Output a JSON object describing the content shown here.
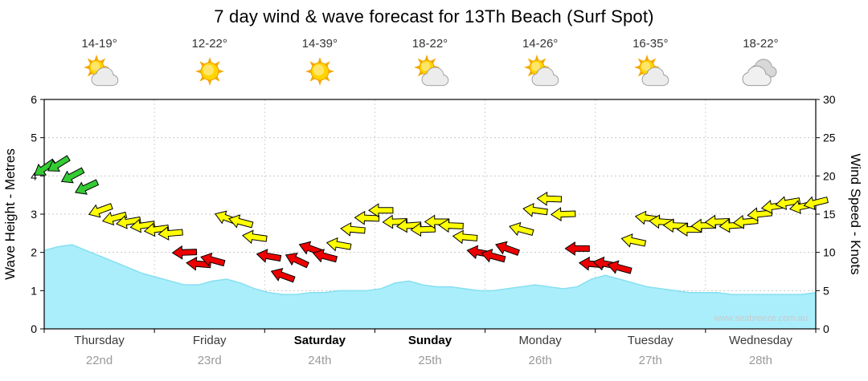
{
  "title": "7 day wind & wave forecast for 13Th Beach (Surf Spot)",
  "watermark": "www.seabreeze.com.au",
  "days": [
    {
      "name": "Thursday",
      "date": "22nd",
      "temp": "14-19°",
      "icon": "partly-cloudy",
      "bold": false
    },
    {
      "name": "Friday",
      "date": "23rd",
      "temp": "12-22°",
      "icon": "sunny",
      "bold": false
    },
    {
      "name": "Saturday",
      "date": "24th",
      "temp": "14-39°",
      "icon": "sunny",
      "bold": true
    },
    {
      "name": "Sunday",
      "date": "25th",
      "temp": "18-22°",
      "icon": "partly-cloudy",
      "bold": true
    },
    {
      "name": "Monday",
      "date": "26th",
      "temp": "14-26°",
      "icon": "partly-cloudy",
      "bold": false
    },
    {
      "name": "Tuesday",
      "date": "27th",
      "temp": "16-35°",
      "icon": "partly-cloudy",
      "bold": false
    },
    {
      "name": "Wednesday",
      "date": "28th",
      "temp": "18-22°",
      "icon": "cloudy",
      "bold": false
    }
  ],
  "chart_data": {
    "type": "area",
    "overlays": [
      "wind-arrows"
    ],
    "title": "7 day wind & wave forecast for 13Th Beach (Surf Spot)",
    "x_days": [
      "Thursday",
      "Friday",
      "Saturday",
      "Sunday",
      "Monday",
      "Tuesday",
      "Wednesday"
    ],
    "points_per_day": 8,
    "y_left": {
      "label": "Wave Height - Metres",
      "min": 0,
      "max": 6,
      "step": 1
    },
    "y_right": {
      "label": "Wind Speed - Knots",
      "min": 0,
      "max": 30,
      "step": 5
    },
    "grid": true,
    "wave_height_m": [
      2.05,
      2.15,
      2.2,
      2.05,
      1.9,
      1.75,
      1.6,
      1.45,
      1.35,
      1.25,
      1.15,
      1.15,
      1.25,
      1.3,
      1.2,
      1.05,
      0.95,
      0.9,
      0.9,
      0.95,
      0.95,
      1.0,
      1.0,
      1.0,
      1.05,
      1.2,
      1.25,
      1.15,
      1.1,
      1.1,
      1.05,
      1.0,
      1.0,
      1.05,
      1.1,
      1.15,
      1.1,
      1.05,
      1.1,
      1.3,
      1.4,
      1.3,
      1.2,
      1.1,
      1.05,
      1.0,
      0.95,
      0.95,
      0.95,
      0.9,
      0.9,
      0.9,
      0.9,
      0.9,
      0.9,
      0.95
    ],
    "wind_speed_knots": [
      21,
      21.5,
      20,
      18.5,
      15.5,
      14.5,
      14,
      13.5,
      13,
      12.5,
      10,
      8.5,
      9,
      14.5,
      14,
      12,
      9.5,
      7,
      9,
      10.5,
      9.5,
      11,
      13,
      14.5,
      15.5,
      14,
      13.5,
      13,
      14,
      13.5,
      12,
      10,
      9.5,
      10.5,
      13,
      15.5,
      17,
      15,
      10.5,
      8.5,
      8.5,
      8,
      11.5,
      14.5,
      14,
      13.5,
      13,
      13.5,
      14,
      13.5,
      14,
      15,
      16,
      16.5,
      16,
      16.5
    ],
    "wind_dir_deg": [
      145,
      148,
      152,
      155,
      160,
      165,
      170,
      172,
      172,
      175,
      178,
      185,
      195,
      200,
      195,
      188,
      190,
      200,
      205,
      200,
      195,
      190,
      185,
      182,
      180,
      178,
      176,
      178,
      180,
      182,
      185,
      190,
      195,
      200,
      195,
      188,
      182,
      178,
      180,
      185,
      190,
      195,
      192,
      188,
      184,
      182,
      180,
      178,
      178,
      176,
      175,
      174,
      172,
      170,
      168,
      166
    ],
    "speed_thresholds": {
      "green_min": 18,
      "yellow_min": 11
    },
    "colors": {
      "wave_fill": "#aaeefc",
      "wave_stroke": "#85dff0",
      "arrow_green": "#33cc33",
      "arrow_yellow": "#ffff00",
      "arrow_red": "#ee0000",
      "grid": "#c8c8c8",
      "axis": "#000000",
      "watermark": "#c9c9c9"
    }
  }
}
